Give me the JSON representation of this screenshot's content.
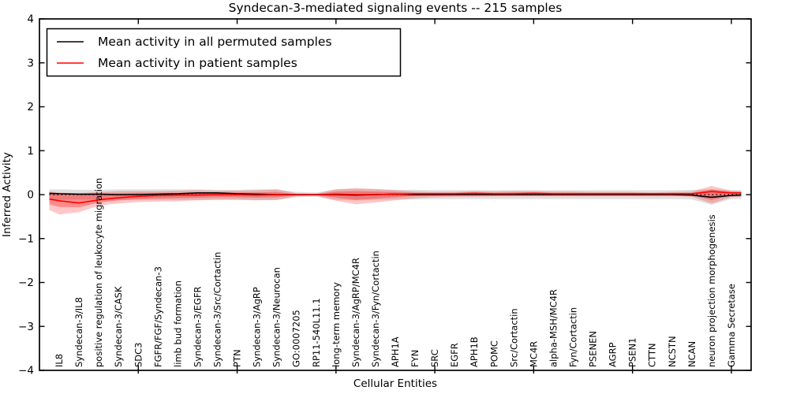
{
  "figure": {
    "title": "Syndecan-3-mediated signaling events -- 215 samples",
    "xlabel": "Cellular Entities",
    "ylabel": "Inferred Activity"
  },
  "legend": {
    "entries": [
      {
        "label": "Mean activity in all permuted samples",
        "color": "#000000"
      },
      {
        "label": "Mean activity in patient samples",
        "color": "#ff0000"
      }
    ],
    "position": "upper left"
  },
  "chart_data": {
    "type": "line",
    "title": "Syndecan-3-mediated signaling events -- 215 samples",
    "xlabel": "Cellular Entities",
    "ylabel": "Inferred Activity",
    "ylim": [
      -4,
      4
    ],
    "yticks": [
      -4,
      -3,
      -2,
      -1,
      0,
      1,
      2,
      3,
      4
    ],
    "xlim": [
      0,
      36
    ],
    "xtick_positions": [
      5,
      10,
      15,
      20,
      25,
      30,
      35
    ],
    "grid": false,
    "legend_position": "upper left",
    "categories": [
      "IL8",
      "Syndecan-3/IL8",
      "positive regulation of leukocyte migration",
      "Syndecan-3/CASK",
      "SDC3",
      "FGFR/FGF/Syndecan-3",
      "limb bud formation",
      "Syndecan-3/EGFR",
      "Syndecan-3/Src/Cortactin",
      "PTN",
      "Syndecan-3/AgRP",
      "Syndecan-3/Neurocan",
      "GO:0007205",
      "RP11-540L11.1",
      "long-term memory",
      "Syndecan-3/AgRP/MC4R",
      "Syndecan-3/Fyn/Cortactin",
      "APH1A",
      "FYN",
      "SRC",
      "EGFR",
      "APH1B",
      "POMC",
      "Src/Cortactin",
      "MC4R",
      "alpha-MSH/MC4R",
      "Fyn/Cortactin",
      "PSENEN",
      "AGRP",
      "PSEN1",
      "CTTN",
      "NCSTN",
      "NCAN",
      "neuron projection morphogenesis",
      "Gamma Secretase"
    ],
    "x_positions": [
      0.5,
      1,
      2,
      3,
      4,
      5,
      6,
      7,
      8,
      9,
      10,
      11,
      12,
      13,
      14,
      15,
      16,
      17,
      18,
      19,
      20,
      21,
      22,
      23,
      24,
      25,
      26,
      27,
      28,
      29,
      30,
      31,
      32,
      33,
      34,
      35,
      35.5
    ],
    "series": [
      {
        "name": "Mean activity in all permuted samples",
        "color": "#000000",
        "values": [
          0.03,
          0.02,
          0.01,
          0.01,
          0.0,
          0.0,
          0.01,
          0.02,
          0.04,
          0.04,
          0.02,
          0.01,
          0.0,
          0.0,
          0.0,
          0.0,
          -0.01,
          0.0,
          0.01,
          0.0,
          0.0,
          0.0,
          0.0,
          0.0,
          0.0,
          0.0,
          0.0,
          0.0,
          0.0,
          0.0,
          0.0,
          0.0,
          0.0,
          -0.01,
          -0.06,
          -0.02,
          -0.01
        ]
      },
      {
        "name": "Mean activity in patient samples",
        "color": "#ff0000",
        "values": [
          -0.1,
          -0.14,
          -0.19,
          -0.12,
          -0.07,
          -0.04,
          -0.02,
          -0.01,
          -0.01,
          0.0,
          0.0,
          -0.01,
          0.0,
          0.0,
          0.0,
          0.01,
          0.0,
          0.0,
          0.01,
          0.02,
          0.02,
          0.02,
          0.03,
          0.02,
          0.02,
          0.03,
          0.02,
          0.02,
          0.02,
          0.02,
          0.02,
          0.02,
          0.02,
          0.02,
          0.07,
          0.04,
          0.04
        ]
      }
    ],
    "zero_line": {
      "value": 0,
      "style": "dotted",
      "color": "#000000"
    },
    "bands": [
      {
        "name": "permuted-sample-range",
        "color": "#999999",
        "opacity": 0.3,
        "upper": [
          0.12,
          0.12,
          0.11,
          0.11,
          0.12,
          0.12,
          0.12,
          0.12,
          0.12,
          0.11,
          0.11,
          0.12,
          0.12,
          0.06,
          0.05,
          0.12,
          0.13,
          0.12,
          0.11,
          0.11,
          0.1,
          0.1,
          0.1,
          0.1,
          0.1,
          0.1,
          0.1,
          0.1,
          0.1,
          0.1,
          0.1,
          0.1,
          0.1,
          0.11,
          0.12,
          0.1,
          0.1
        ],
        "lower": [
          -0.12,
          -0.12,
          -0.11,
          -0.11,
          -0.12,
          -0.12,
          -0.12,
          -0.12,
          -0.12,
          -0.11,
          -0.11,
          -0.12,
          -0.12,
          -0.06,
          -0.05,
          -0.12,
          -0.13,
          -0.12,
          -0.11,
          -0.11,
          -0.1,
          -0.1,
          -0.1,
          -0.1,
          -0.1,
          -0.1,
          -0.1,
          -0.1,
          -0.1,
          -0.1,
          -0.1,
          -0.1,
          -0.1,
          -0.11,
          -0.23,
          -0.1,
          -0.1
        ]
      },
      {
        "name": "patient-sample-range-outer",
        "color": "#ff0000",
        "opacity": 0.22,
        "upper": [
          0.07,
          0.05,
          0.03,
          0.06,
          0.08,
          0.08,
          0.08,
          0.09,
          0.1,
          0.09,
          0.09,
          0.1,
          0.12,
          0.03,
          0.02,
          0.12,
          0.15,
          0.13,
          0.1,
          0.07,
          0.06,
          0.06,
          0.08,
          0.07,
          0.08,
          0.08,
          0.07,
          0.07,
          0.06,
          0.06,
          0.06,
          0.05,
          0.06,
          0.07,
          0.2,
          0.09,
          0.08
        ],
        "lower": [
          -0.35,
          -0.45,
          -0.4,
          -0.25,
          -0.2,
          -0.17,
          -0.16,
          -0.15,
          -0.13,
          -0.12,
          -0.12,
          -0.13,
          -0.12,
          -0.04,
          -0.03,
          -0.14,
          -0.22,
          -0.18,
          -0.13,
          -0.08,
          -0.06,
          -0.05,
          -0.05,
          -0.04,
          -0.04,
          -0.04,
          -0.04,
          -0.04,
          -0.04,
          -0.04,
          -0.04,
          -0.04,
          -0.04,
          -0.05,
          -0.2,
          -0.06,
          -0.05
        ]
      },
      {
        "name": "patient-sample-range-inner",
        "color": "#ff0000",
        "opacity": 0.3,
        "upper": [
          0.03,
          0.02,
          0.0,
          0.02,
          0.03,
          0.04,
          0.04,
          0.04,
          0.05,
          0.05,
          0.05,
          0.05,
          0.06,
          0.01,
          0.01,
          0.07,
          0.08,
          0.07,
          0.06,
          0.04,
          0.04,
          0.04,
          0.05,
          0.04,
          0.05,
          0.05,
          0.04,
          0.04,
          0.04,
          0.04,
          0.04,
          0.03,
          0.04,
          0.04,
          0.12,
          0.06,
          0.06
        ],
        "lower": [
          -0.22,
          -0.28,
          -0.29,
          -0.18,
          -0.13,
          -0.1,
          -0.09,
          -0.08,
          -0.07,
          -0.06,
          -0.06,
          -0.07,
          -0.06,
          -0.02,
          -0.01,
          -0.07,
          -0.12,
          -0.09,
          -0.06,
          -0.03,
          -0.02,
          -0.01,
          -0.01,
          -0.01,
          -0.01,
          -0.01,
          -0.01,
          -0.01,
          -0.01,
          -0.01,
          -0.01,
          -0.01,
          -0.01,
          -0.02,
          -0.12,
          -0.02,
          -0.01
        ]
      }
    ]
  }
}
